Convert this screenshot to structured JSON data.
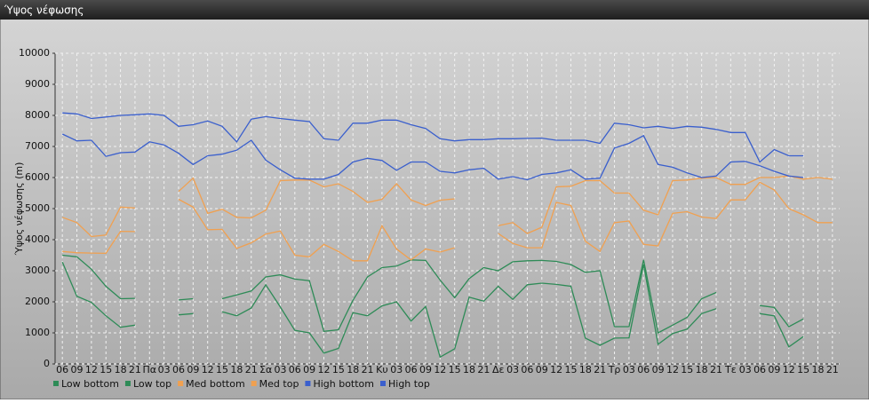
{
  "chart_data": {
    "type": "line",
    "title": "Ύψος νέφωσης",
    "y_label": "Ύψος νέφωσης (m)",
    "categories": [
      "06",
      "09",
      "12",
      "15",
      "18",
      "21",
      "Πα",
      "03",
      "06",
      "09",
      "12",
      "15",
      "18",
      "21",
      "Σα",
      "03",
      "06",
      "09",
      "12",
      "15",
      "18",
      "21",
      "Κυ",
      "03",
      "06",
      "09",
      "12",
      "15",
      "18",
      "21",
      "Δε",
      "03",
      "06",
      "09",
      "12",
      "15",
      "18",
      "21",
      "Τρ",
      "03",
      "06",
      "09",
      "12",
      "15",
      "18",
      "21",
      "Τε",
      "03",
      "06",
      "09",
      "12",
      "15",
      "18",
      "21"
    ],
    "ylim": [
      0,
      10000
    ],
    "yticks": [
      0,
      1000,
      2000,
      3000,
      4000,
      5000,
      6000,
      7000,
      8000,
      9000,
      10000
    ],
    "grid": true,
    "legend": "bottom-left",
    "series": [
      {
        "name": "Low bottom",
        "color": "#2e8b57",
        "values": [
          3280,
          2180,
          1980,
          1550,
          1180,
          1250,
          null,
          null,
          1580,
          1620,
          null,
          1680,
          1550,
          1800,
          2550,
          1830,
          1080,
          1000,
          350,
          500,
          1650,
          1550,
          1870,
          2000,
          1380,
          1850,
          220,
          490,
          2150,
          2020,
          2500,
          2080,
          2550,
          2600,
          2560,
          2500,
          830,
          600,
          830,
          840,
          3200,
          630,
          980,
          1120,
          1620,
          1780,
          null,
          null,
          1620,
          1550,
          550,
          880,
          null,
          null
        ]
      },
      {
        "name": "Low top",
        "color": "#2e8b57",
        "values": [
          3500,
          3450,
          3050,
          2500,
          2100,
          2110,
          null,
          null,
          2060,
          2100,
          null,
          2100,
          2220,
          2350,
          2800,
          2870,
          2730,
          2680,
          1050,
          1100,
          2050,
          2800,
          3100,
          3150,
          3350,
          3330,
          2700,
          2130,
          2750,
          3100,
          3000,
          3290,
          3320,
          3330,
          3300,
          3200,
          2950,
          3000,
          1200,
          1200,
          3350,
          1000,
          1250,
          1500,
          2100,
          2300,
          null,
          null,
          1880,
          1820,
          1200,
          1450,
          null,
          null
        ]
      },
      {
        "name": "Med bottom",
        "color": "#f0a050",
        "values": [
          3620,
          3580,
          3570,
          3560,
          4270,
          4260,
          null,
          null,
          5300,
          5050,
          4320,
          4330,
          3720,
          3900,
          4180,
          4280,
          3500,
          3450,
          3850,
          3620,
          3320,
          3320,
          4450,
          3700,
          3350,
          3700,
          3600,
          3740,
          null,
          null,
          4200,
          3880,
          3740,
          3740,
          5200,
          5100,
          3950,
          3620,
          4550,
          4600,
          3850,
          3800,
          4850,
          4900,
          4730,
          4680,
          5280,
          5280,
          5850,
          5600,
          5000,
          4800,
          4550,
          4550
        ]
      },
      {
        "name": "Med top",
        "color": "#f0a050",
        "values": [
          4720,
          4550,
          4100,
          4150,
          5050,
          5020,
          null,
          null,
          5550,
          5980,
          4850,
          4980,
          4720,
          4700,
          4950,
          5900,
          5920,
          5920,
          5700,
          5800,
          5550,
          5200,
          5300,
          5800,
          5280,
          5100,
          5270,
          5310,
          null,
          null,
          4450,
          4550,
          4200,
          4400,
          5700,
          5720,
          5900,
          5900,
          5500,
          5500,
          4950,
          4800,
          5900,
          5920,
          5980,
          6000,
          5780,
          5780,
          6000,
          6000,
          6050,
          5950,
          6000,
          5950
        ]
      },
      {
        "name": "High bottom",
        "color": "#3a5fcd",
        "values": [
          7400,
          7180,
          7200,
          6680,
          6800,
          6820,
          7150,
          7050,
          6780,
          6420,
          6700,
          6750,
          6880,
          7200,
          6560,
          6250,
          5980,
          5950,
          5950,
          6100,
          6500,
          6620,
          6550,
          6230,
          6500,
          6500,
          6200,
          6150,
          6250,
          6300,
          5950,
          6030,
          5930,
          6100,
          6150,
          6250,
          5950,
          5980,
          6950,
          7100,
          7350,
          6420,
          6330,
          6150,
          6000,
          6050,
          6500,
          6520,
          6380,
          6200,
          6050,
          6000,
          null,
          null
        ]
      },
      {
        "name": "High top",
        "color": "#3a5fcd",
        "values": [
          8080,
          8050,
          7900,
          7950,
          8000,
          8020,
          8050,
          8000,
          7650,
          7700,
          7820,
          7650,
          7150,
          7880,
          7960,
          7900,
          7850,
          7800,
          7250,
          7200,
          7750,
          7750,
          7850,
          7850,
          7700,
          7580,
          7250,
          7180,
          7220,
          7220,
          7250,
          7250,
          7260,
          7270,
          7200,
          7200,
          7200,
          7100,
          7750,
          7700,
          7600,
          7650,
          7580,
          7650,
          7620,
          7550,
          7450,
          7450,
          6500,
          6900,
          6700,
          6700,
          null,
          null
        ]
      }
    ]
  }
}
